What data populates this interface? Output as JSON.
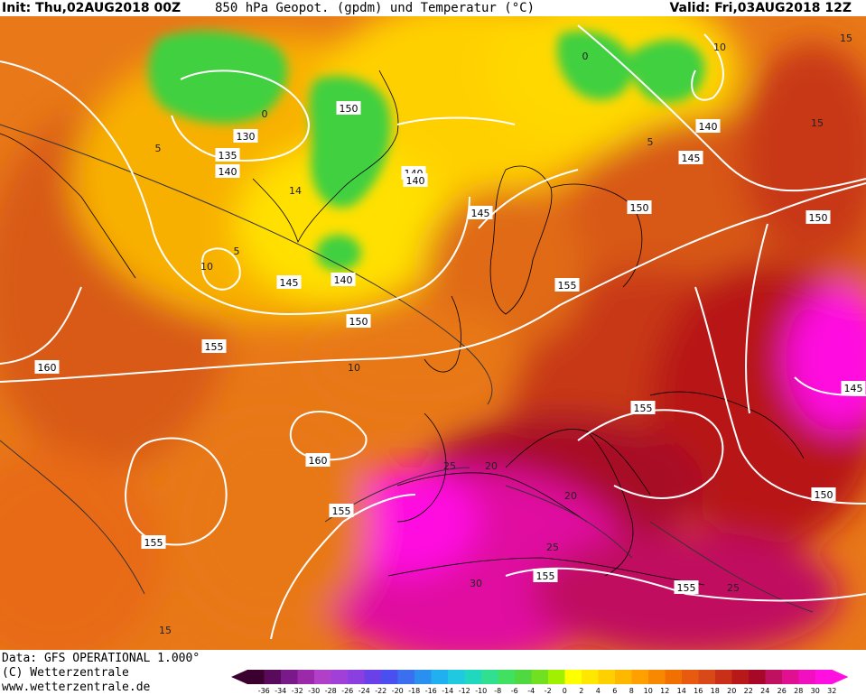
{
  "header": {
    "init": "Init: Thu,02AUG2018 00Z",
    "title": "850 hPa Geopot. (gpdm) und Temperatur (°C)",
    "valid": "Valid: Fri,03AUG2018 12Z"
  },
  "footer": {
    "data_line": "Data: GFS OPERATIONAL 1.000°",
    "copyright_line": "(C) Wetterzentrale",
    "url_line": "www.wetterzentrale.de"
  },
  "geopotential_labels": [
    "130",
    "135",
    "140",
    "140",
    "140",
    "140",
    "140",
    "145",
    "145",
    "145",
    "145",
    "150",
    "150",
    "150",
    "150",
    "150",
    "155",
    "155",
    "155",
    "155",
    "155",
    "155",
    "155",
    "160",
    "160"
  ],
  "temperature_labels": [
    "0",
    "0",
    "5",
    "5",
    "5",
    "10",
    "10",
    "10",
    "14",
    "15",
    "15",
    "15",
    "20",
    "20",
    "25",
    "25",
    "25",
    "30"
  ],
  "legend": {
    "ticks": [
      "-36",
      "-34",
      "-32",
      "-30",
      "-28",
      "-26",
      "-24",
      "-22",
      "-20",
      "-18",
      "-16",
      "-14",
      "-12",
      "-10",
      "-8",
      "-6",
      "-4",
      "-2",
      "0",
      "2",
      "4",
      "6",
      "8",
      "10",
      "12",
      "14",
      "16",
      "18",
      "20",
      "22",
      "24",
      "26",
      "28",
      "30",
      "32"
    ],
    "colors": [
      "#3c0030",
      "#5a0a5a",
      "#7a1a8a",
      "#9a2aaa",
      "#b040c8",
      "#a040d8",
      "#8a40e0",
      "#6a40e8",
      "#4a50f0",
      "#3a70f0",
      "#2a90f0",
      "#20b0f0",
      "#20c8e0",
      "#20d8c0",
      "#30e090",
      "#40e060",
      "#50d840",
      "#70e020",
      "#a0f000",
      "#ffff00",
      "#ffe800",
      "#ffd000",
      "#ffb800",
      "#ffa000",
      "#f88800",
      "#f07000",
      "#e85a10",
      "#d84818",
      "#c83018",
      "#b81818",
      "#a80828",
      "#c01060",
      "#e01090",
      "#f010c0",
      "#ff10e0"
    ]
  },
  "colors": {
    "isohypse": "#ffffff",
    "isotherm": "#333333",
    "coastline": "#000000"
  }
}
